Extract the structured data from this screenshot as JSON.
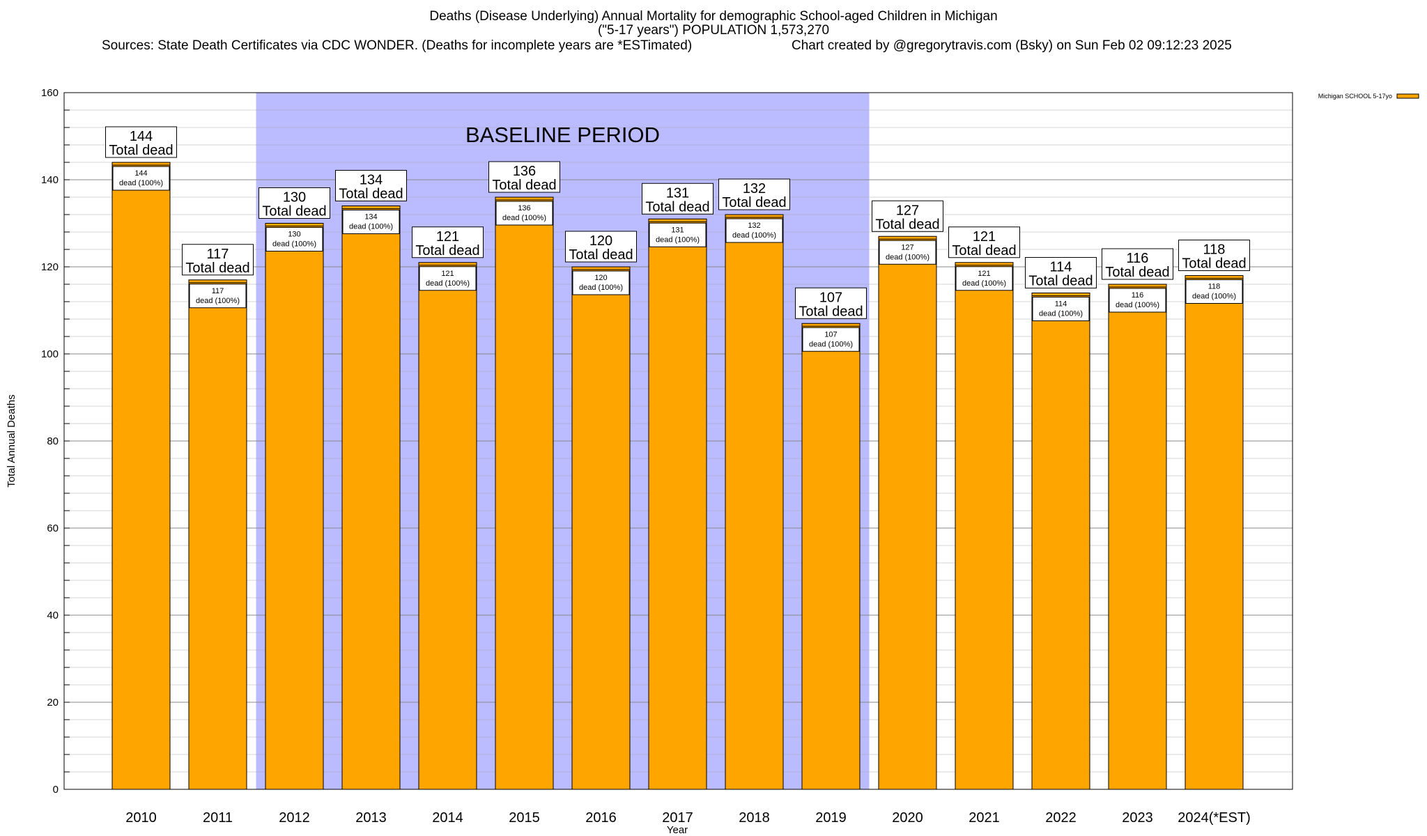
{
  "header": {
    "title_line1": "Deaths (Disease Underlying) Annual Mortality for demographic School-aged Children in Michigan",
    "title_line2": "(\"5-17 years\") POPULATION 1,573,270",
    "sources": "Sources: State Death Certificates via CDC WONDER. (Deaths for incomplete years are *ESTimated)",
    "credit": "Chart created by @gregorytravis.com (Bsky) on Sun Feb 02 09:12:23 2025"
  },
  "chart_data": {
    "type": "bar",
    "categories": [
      "2010",
      "2011",
      "2012",
      "2013",
      "2014",
      "2015",
      "2016",
      "2017",
      "2018",
      "2019",
      "2020",
      "2021",
      "2022",
      "2023",
      "2024(*EST)"
    ],
    "series": [
      {
        "name": "Michigan SCHOOL 5-17yo",
        "values": [
          144,
          117,
          130,
          134,
          121,
          136,
          120,
          131,
          132,
          107,
          127,
          121,
          114,
          116,
          118
        ]
      }
    ],
    "xlabel": "Year",
    "ylabel": "Total Annual Deaths",
    "ylim": [
      0,
      160
    ],
    "yticks": [
      0,
      20,
      40,
      60,
      80,
      100,
      120,
      140,
      160
    ],
    "grid": true,
    "legend_position": "top-right",
    "data_label_top": "Total dead",
    "data_label_inner": "dead (100%)",
    "baseline_label": "BASELINE PERIOD",
    "baseline_range": [
      "2012",
      "2019"
    ],
    "colors": {
      "bar": "#FFA500",
      "baseline": "#BBBBFF",
      "grid": "#AAAAAA"
    }
  }
}
